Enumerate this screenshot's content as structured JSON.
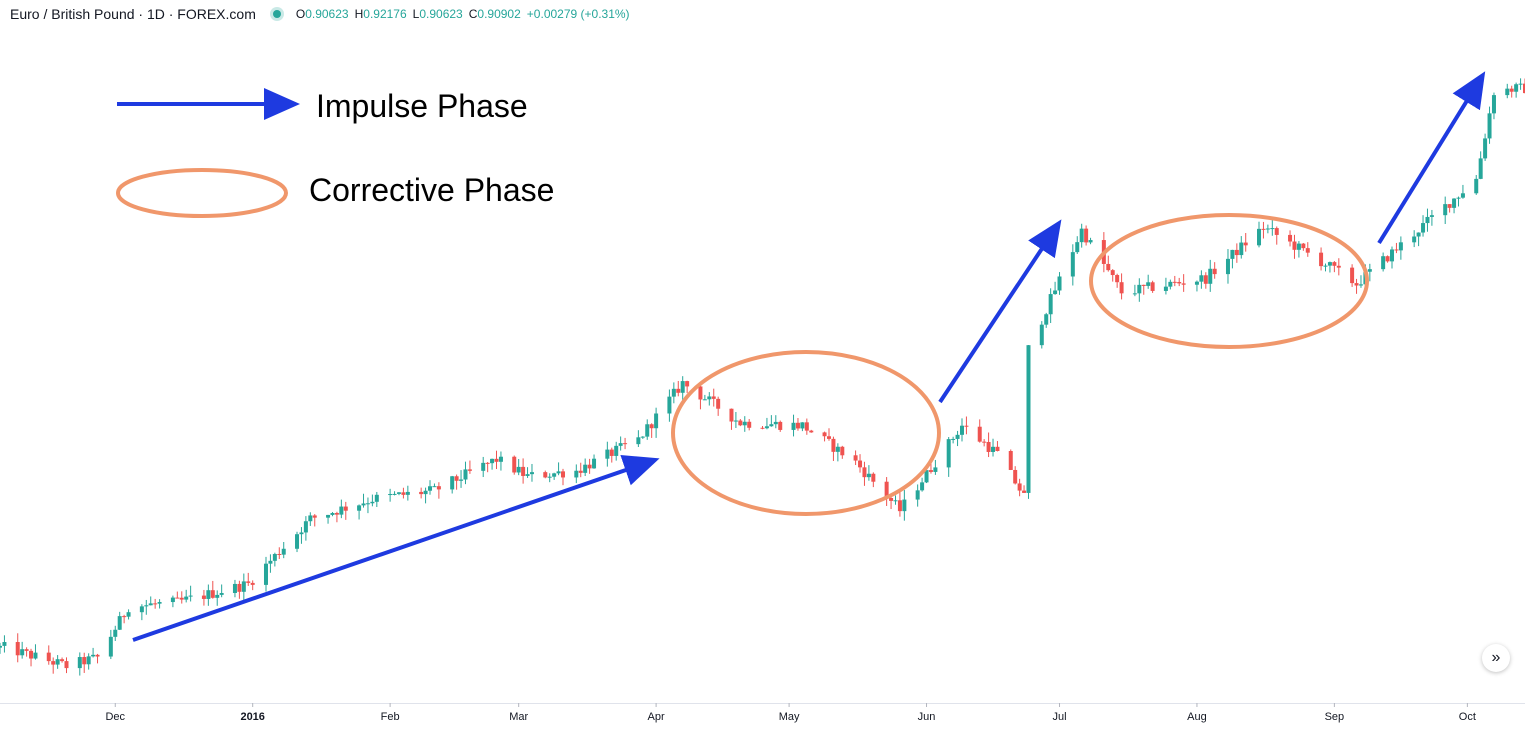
{
  "header": {
    "symbol_title": "Euro / British Pound · 1D · FOREX.com",
    "status_color": "#26a69a",
    "ohlc": {
      "o_label": "O",
      "o_value": "0.90623",
      "h_label": "H",
      "h_value": "0.92176",
      "l_label": "L",
      "l_value": "0.90623",
      "c_label": "C",
      "c_value": "0.90902",
      "change": "+0.00279 (+0.31%)"
    }
  },
  "annotations": {
    "impulse_label": "Impulse Phase",
    "corrective_label": "Corrective Phase",
    "arrow_color": "#1e3ae0",
    "ellipse_color": "#f0976b"
  },
  "controls": {
    "scroll_icon": "double-chevron-right-icon",
    "scroll_glyph": "»"
  },
  "chart_data": {
    "type": "candlestick",
    "pair": "EUR/GBP",
    "interval": "1D",
    "up_color": "#26a69a",
    "down_color": "#ef5350",
    "grid": false,
    "x_axis_labels": [
      {
        "label": "Dec",
        "date": "2015-12-01"
      },
      {
        "label": "2016",
        "date": "2016-01-01",
        "bold": true
      },
      {
        "label": "Feb",
        "date": "2016-02-01"
      },
      {
        "label": "Mar",
        "date": "2016-03-01"
      },
      {
        "label": "Apr",
        "date": "2016-04-01"
      },
      {
        "label": "May",
        "date": "2016-05-01"
      },
      {
        "label": "Jun",
        "date": "2016-06-01"
      },
      {
        "label": "Jul",
        "date": "2016-07-01"
      },
      {
        "label": "Aug",
        "date": "2016-08-01"
      },
      {
        "label": "Sep",
        "date": "2016-09-01"
      },
      {
        "label": "Oct",
        "date": "2016-10-01"
      }
    ],
    "x_range": [
      "2015-11-05",
      "2016-10-14"
    ],
    "y_range": [
      0.693,
      0.9297
    ],
    "series": [
      {
        "date": "2015-11-06",
        "close": 0.7115
      },
      {
        "date": "2015-11-20",
        "close": 0.705
      },
      {
        "date": "2015-11-27",
        "close": 0.708
      },
      {
        "date": "2015-12-04",
        "close": 0.726
      },
      {
        "date": "2015-12-15",
        "close": 0.7275
      },
      {
        "date": "2015-12-31",
        "close": 0.734
      },
      {
        "date": "2016-01-14",
        "close": 0.757
      },
      {
        "date": "2016-01-28",
        "close": 0.764
      },
      {
        "date": "2016-02-11",
        "close": 0.767
      },
      {
        "date": "2016-02-25",
        "close": 0.778
      },
      {
        "date": "2016-03-03",
        "close": 0.772
      },
      {
        "date": "2016-03-14",
        "close": 0.774
      },
      {
        "date": "2016-03-28",
        "close": 0.785
      },
      {
        "date": "2016-04-07",
        "close": 0.805
      },
      {
        "date": "2016-04-20",
        "close": 0.791
      },
      {
        "date": "2016-05-04",
        "close": 0.79
      },
      {
        "date": "2016-05-16",
        "close": 0.777
      },
      {
        "date": "2016-05-26",
        "close": 0.76
      },
      {
        "date": "2016-06-09",
        "close": 0.79
      },
      {
        "date": "2016-06-17",
        "close": 0.78
      },
      {
        "date": "2016-06-23",
        "close": 0.765
      },
      {
        "date": "2016-06-24",
        "close": 0.817
      },
      {
        "date": "2016-07-06",
        "close": 0.859
      },
      {
        "date": "2016-07-15",
        "close": 0.837
      },
      {
        "date": "2016-08-03",
        "close": 0.842
      },
      {
        "date": "2016-08-16",
        "close": 0.86
      },
      {
        "date": "2016-08-30",
        "close": 0.847
      },
      {
        "date": "2016-09-06",
        "close": 0.84
      },
      {
        "date": "2016-09-22",
        "close": 0.862
      },
      {
        "date": "2016-10-03",
        "close": 0.877
      },
      {
        "date": "2016-10-07",
        "close": 0.908
      },
      {
        "date": "2016-10-12",
        "close": 0.909
      }
    ]
  }
}
